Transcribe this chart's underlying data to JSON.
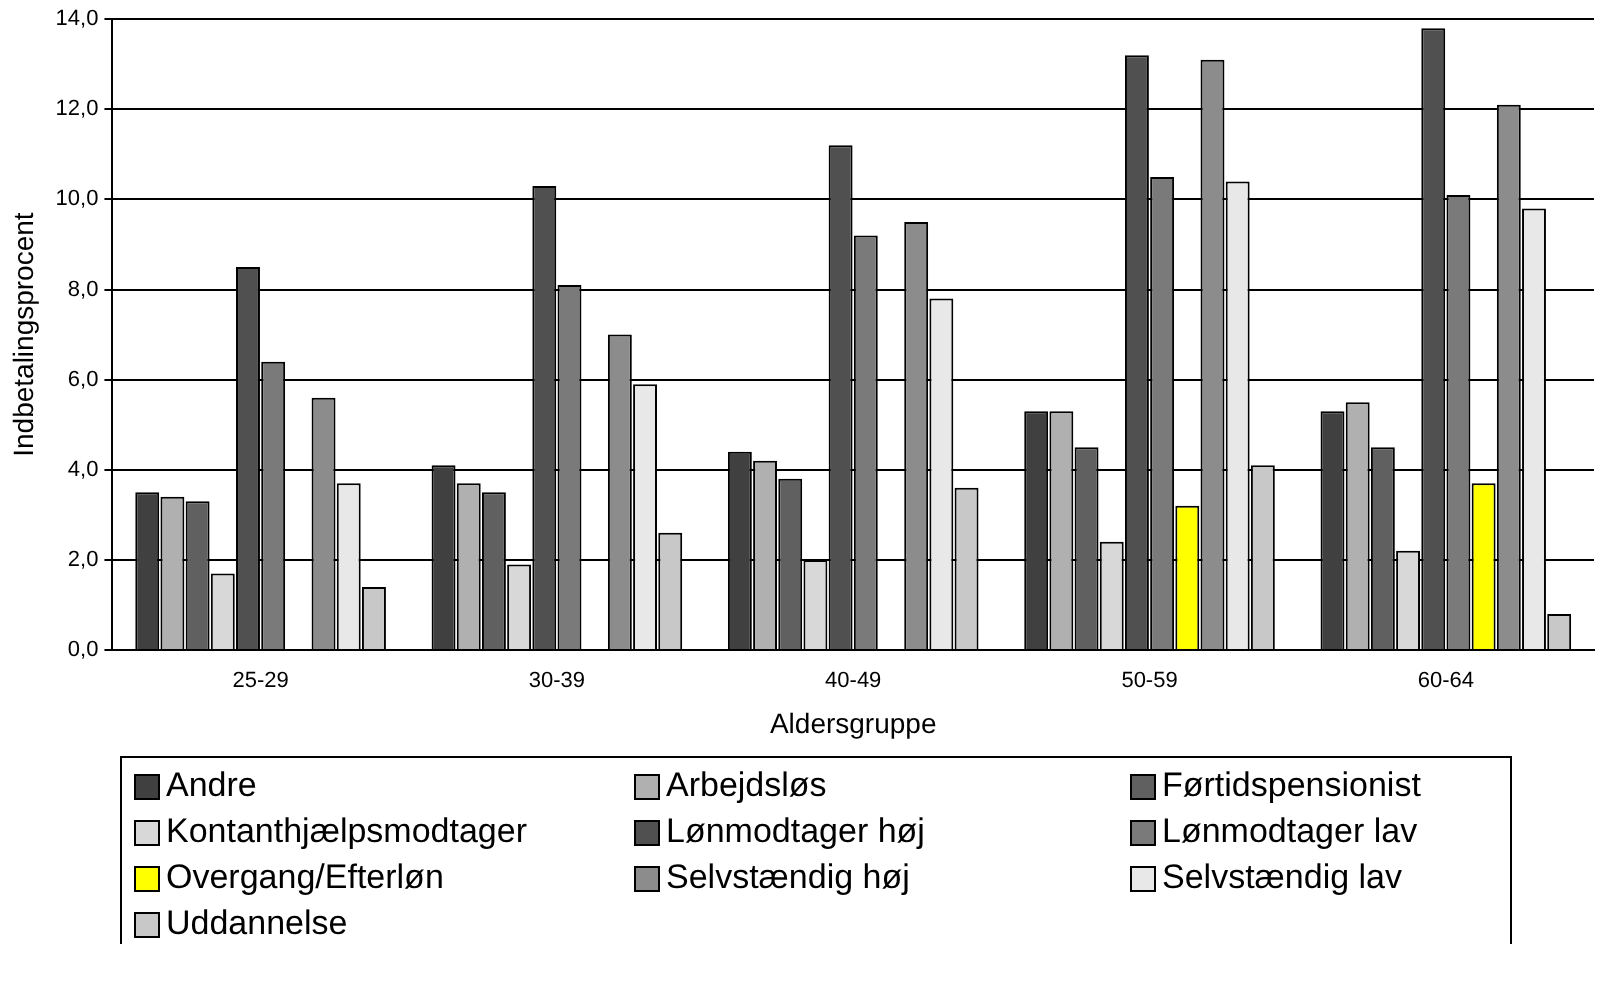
{
  "chart_data": {
    "type": "bar",
    "xlabel": "Aldersgruppe",
    "ylabel": "Indbetalingsprocent",
    "categories": [
      "25-29",
      "30-39",
      "40-49",
      "50-59",
      "60-64"
    ],
    "series": [
      {
        "name": "Andre",
        "color": "#404040",
        "values": [
          3.5,
          4.1,
          4.4,
          5.3,
          5.3
        ]
      },
      {
        "name": "Arbejdsløs",
        "color": "#b0b0b0",
        "values": [
          3.4,
          3.7,
          4.2,
          5.3,
          5.5
        ]
      },
      {
        "name": "Førtidspensionist",
        "color": "#606060",
        "values": [
          3.3,
          3.5,
          3.8,
          4.5,
          4.5
        ]
      },
      {
        "name": "Kontanthjælpsmodtager",
        "color": "#d8d8d8",
        "values": [
          1.7,
          1.9,
          2.0,
          2.4,
          2.2
        ]
      },
      {
        "name": "Lønmodtager høj",
        "color": "#505050",
        "values": [
          8.5,
          10.3,
          11.2,
          13.2,
          13.8
        ]
      },
      {
        "name": "Lønmodtager lav",
        "color": "#7a7a7a",
        "values": [
          6.4,
          8.1,
          9.2,
          10.5,
          10.1
        ]
      },
      {
        "name": "Overgang/Efterløn",
        "color": "#ffff00",
        "values": [
          null,
          null,
          null,
          3.2,
          3.7
        ]
      },
      {
        "name": "Selvstændig høj",
        "color": "#8c8c8c",
        "values": [
          5.6,
          7.0,
          9.5,
          13.1,
          12.1
        ]
      },
      {
        "name": "Selvstændig lav",
        "color": "#e8e8e8",
        "values": [
          3.7,
          5.9,
          7.8,
          10.4,
          9.8
        ]
      },
      {
        "name": "Uddannelse",
        "color": "#c8c8c8",
        "values": [
          1.4,
          2.6,
          3.6,
          4.1,
          0.8
        ]
      }
    ],
    "ylim": [
      0,
      14
    ],
    "yticks": [
      {
        "value": 0,
        "label": "0,0"
      },
      {
        "value": 2,
        "label": "2,0"
      },
      {
        "value": 4,
        "label": "4,0"
      },
      {
        "value": 6,
        "label": "6,0"
      },
      {
        "value": 8,
        "label": "8,0"
      },
      {
        "value": 10,
        "label": "10,0"
      },
      {
        "value": 12,
        "label": "12,0"
      },
      {
        "value": 14,
        "label": "14,0"
      }
    ],
    "grid": "y",
    "legend": "bottom"
  }
}
